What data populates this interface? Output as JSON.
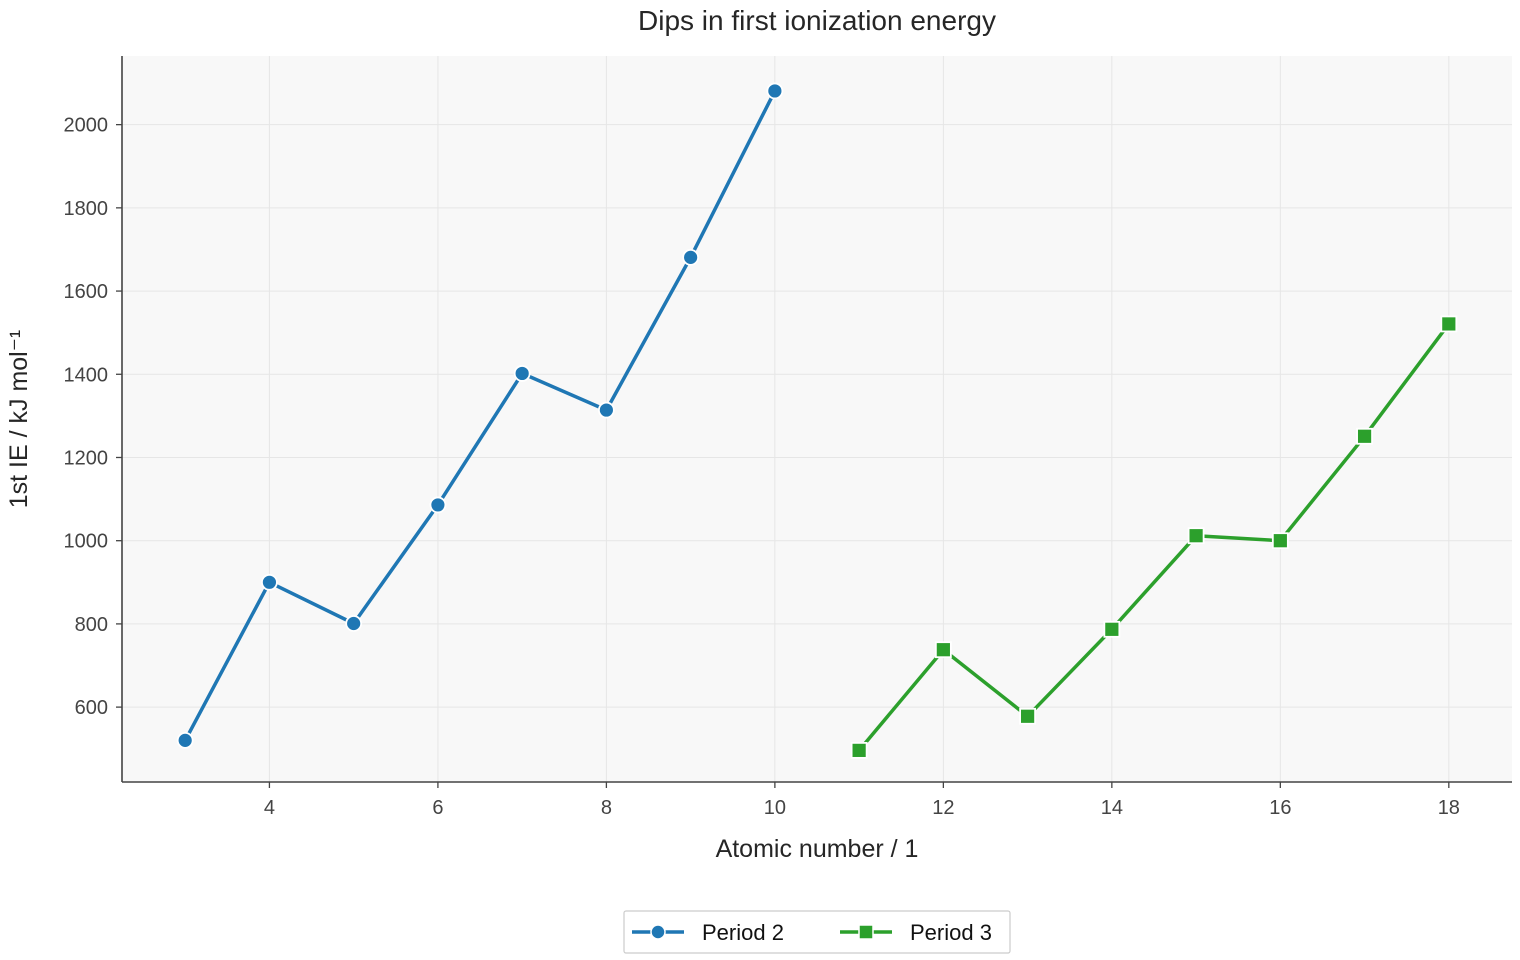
{
  "chart_data": {
    "type": "line",
    "title": "Dips in first ionization energy",
    "xlabel": "Atomic number / 1",
    "ylabel": "1st IE / kJ mol⁻¹",
    "xlim": [
      2.25,
      18.75
    ],
    "ylim": [
      420,
      2165
    ],
    "x_ticks": [
      4,
      6,
      8,
      10,
      12,
      14,
      16,
      18
    ],
    "y_ticks": [
      600,
      800,
      1000,
      1200,
      1400,
      1600,
      1800,
      2000
    ],
    "grid": true,
    "legend_position": "bottom-center",
    "series": [
      {
        "name": "Period 2",
        "color": "#1f77b4",
        "marker": "circle",
        "x": [
          3,
          4,
          5,
          6,
          7,
          8,
          9,
          10
        ],
        "y": [
          520,
          900,
          801,
          1086,
          1402,
          1314,
          1681,
          2081
        ]
      },
      {
        "name": "Period 3",
        "color": "#2ca02c",
        "marker": "square",
        "x": [
          11,
          12,
          13,
          14,
          15,
          16,
          17,
          18
        ],
        "y": [
          496,
          738,
          578,
          787,
          1012,
          1000,
          1251,
          1521
        ]
      }
    ]
  }
}
